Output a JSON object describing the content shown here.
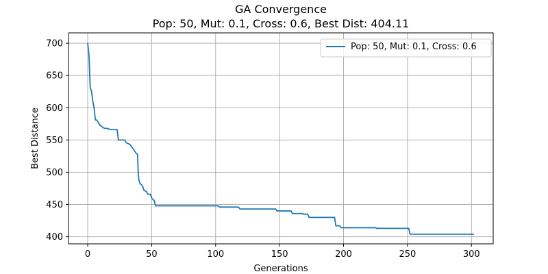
{
  "chart_data": {
    "type": "line",
    "title": "GA Convergence",
    "subtitle": "Pop: 50, Mut: 0.1, Cross: 0.6, Best Dist: 404.11",
    "xlabel": "Generations",
    "ylabel": "Best Distance",
    "xlim": [
      -15,
      317
    ],
    "ylim": [
      389,
      716
    ],
    "xticks": [
      0,
      50,
      100,
      150,
      200,
      250,
      300
    ],
    "yticks": [
      400,
      450,
      500,
      550,
      600,
      650,
      700
    ],
    "grid": true,
    "legend_position": "top-right",
    "series": [
      {
        "name": "Pop: 50, Mut: 0.1, Cross: 0.6",
        "color": "#1f77b4",
        "x": [
          0,
          1,
          2,
          3,
          4,
          5,
          6,
          7,
          10,
          11,
          13,
          15,
          18,
          23,
          24,
          29,
          30,
          33,
          35,
          37,
          38,
          39,
          39.5,
          40,
          41,
          42,
          43,
          44,
          46,
          47,
          49,
          50,
          52,
          53,
          102,
          103,
          118,
          119,
          147,
          148,
          150,
          159,
          160,
          168,
          169,
          172,
          173,
          193,
          194,
          197,
          198,
          225,
          226,
          251,
          252,
          302
        ],
        "y": [
          700,
          682,
          630,
          626,
          610,
          600,
          581,
          581,
          572,
          571,
          568,
          568,
          566,
          566,
          550,
          550,
          546,
          543,
          538,
          532,
          529,
          528,
          500,
          488,
          482,
          481,
          478,
          472,
          470,
          466,
          466,
          460,
          456,
          448,
          448,
          446,
          446,
          443,
          443,
          440,
          440,
          440,
          436,
          436,
          435,
          435,
          430,
          430,
          417,
          417,
          414,
          414,
          413,
          413,
          404,
          404
        ]
      }
    ]
  }
}
